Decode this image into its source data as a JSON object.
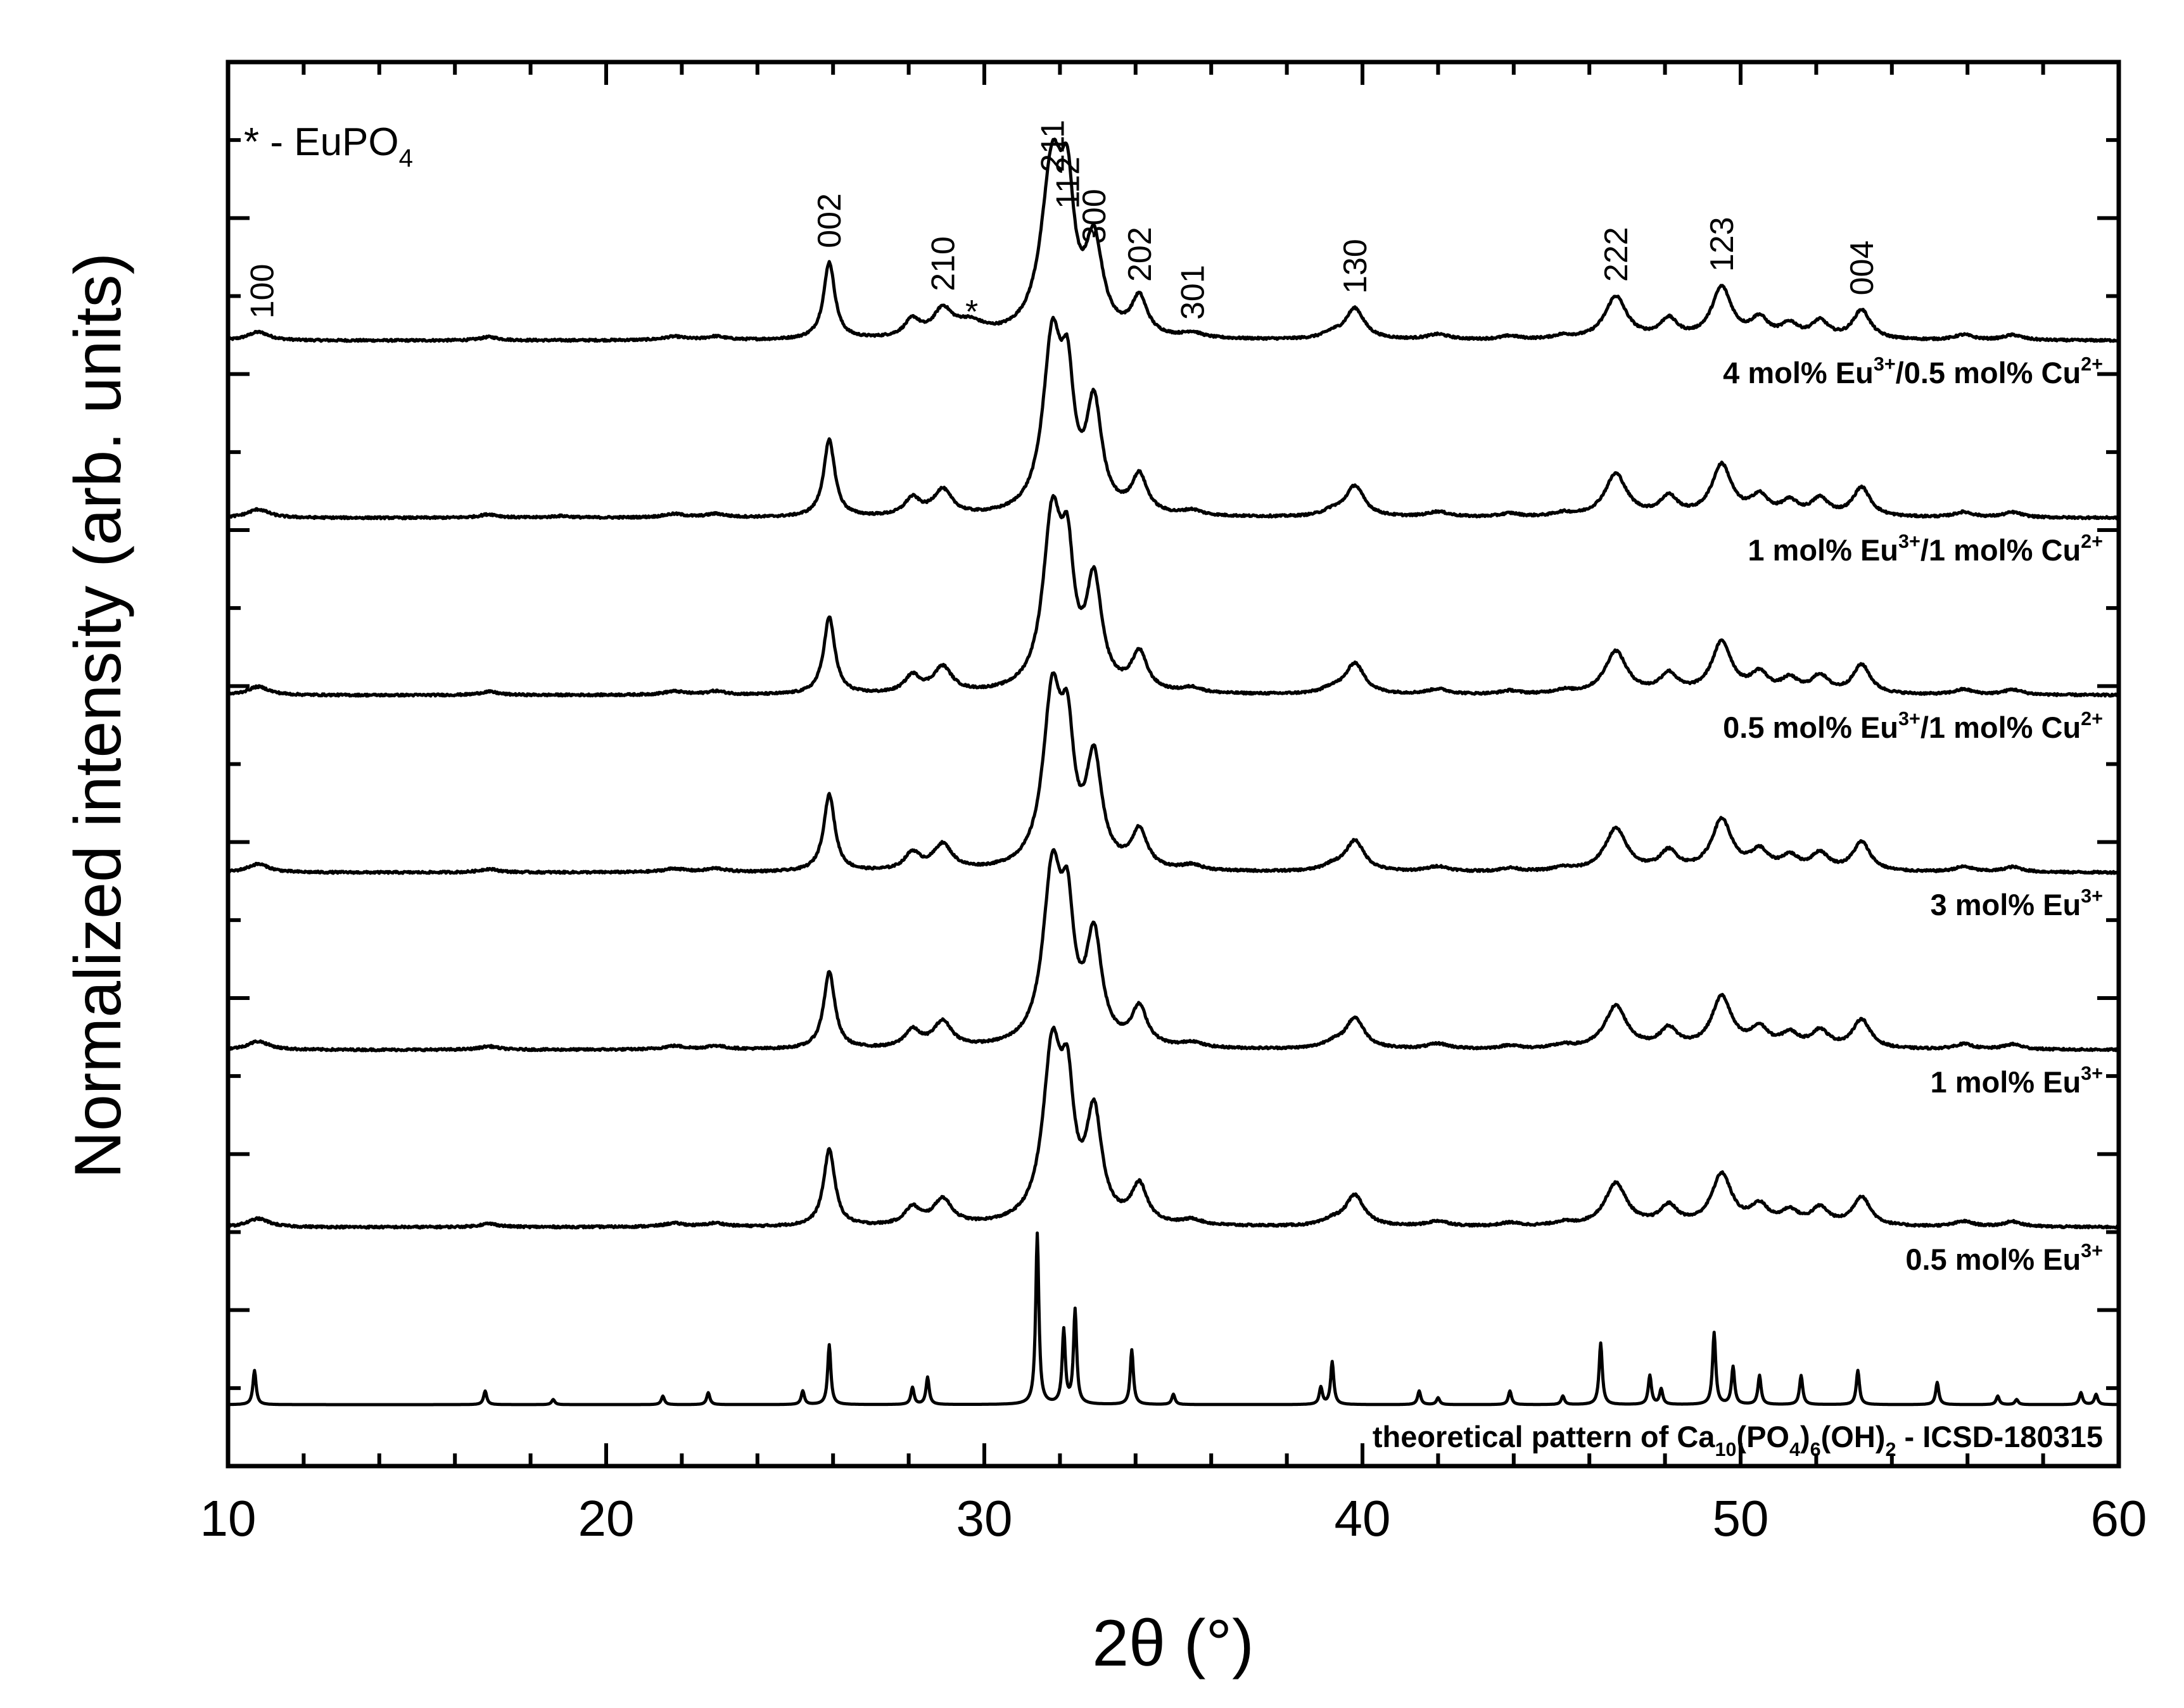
{
  "chart_data": {
    "type": "line",
    "xlabel": "2θ (°)",
    "ylabel": "Normalized intensity (arb. units)",
    "xlim": [
      10,
      60
    ],
    "x_ticks": [
      10,
      20,
      30,
      40,
      50,
      60
    ],
    "y_ticks_labeled": false,
    "grid": false,
    "legend_note": {
      "main": "* - EuPO",
      "sub": "4"
    },
    "impurity_marker": {
      "symbol": "*",
      "x": 29.6
    },
    "peak_labels": [
      {
        "text": "100",
        "x": 10.9
      },
      {
        "text": "002",
        "x": 25.9
      },
      {
        "text": "210",
        "x": 28.9
      },
      {
        "text": "211",
        "x": 31.8
      },
      {
        "text": "112",
        "x": 32.2
      },
      {
        "text": "300",
        "x": 32.9
      },
      {
        "text": "202",
        "x": 34.1
      },
      {
        "text": "301",
        "x": 35.5
      },
      {
        "text": "130",
        "x": 39.8
      },
      {
        "text": "222",
        "x": 46.7
      },
      {
        "text": "123",
        "x": 49.5
      },
      {
        "text": "004",
        "x": 53.2
      }
    ],
    "series": [
      {
        "name_parts": [
          [
            "4 mol% Eu",
            ""
          ],
          [
            "3+",
            "sup"
          ],
          [
            "/0.5 mol% Cu",
            ""
          ],
          [
            "2+",
            "sup"
          ]
        ],
        "offset": 6.0,
        "peaks": [
          [
            10.8,
            0.05,
            0.35
          ],
          [
            16.9,
            0.02,
            0.3
          ],
          [
            21.8,
            0.02,
            0.35
          ],
          [
            22.9,
            0.02,
            0.3
          ],
          [
            25.9,
            0.45,
            0.18
          ],
          [
            28.1,
            0.1,
            0.25
          ],
          [
            28.9,
            0.15,
            0.3
          ],
          [
            29.6,
            0.08,
            0.5
          ],
          [
            31.8,
            1.0,
            0.35
          ],
          [
            32.2,
            0.62,
            0.2
          ],
          [
            32.9,
            0.52,
            0.28
          ],
          [
            34.1,
            0.22,
            0.25
          ],
          [
            35.5,
            0.03,
            0.3
          ],
          [
            39.2,
            0.03,
            0.3
          ],
          [
            39.8,
            0.18,
            0.3
          ],
          [
            42.0,
            0.03,
            0.35
          ],
          [
            43.9,
            0.02,
            0.3
          ],
          [
            45.3,
            0.02,
            0.3
          ],
          [
            46.7,
            0.25,
            0.35
          ],
          [
            48.1,
            0.11,
            0.28
          ],
          [
            49.5,
            0.3,
            0.32
          ],
          [
            50.5,
            0.11,
            0.28
          ],
          [
            51.3,
            0.08,
            0.28
          ],
          [
            52.1,
            0.1,
            0.28
          ],
          [
            53.2,
            0.17,
            0.28
          ],
          [
            55.9,
            0.03,
            0.3
          ],
          [
            57.2,
            0.03,
            0.3
          ]
        ]
      },
      {
        "name_parts": [
          [
            "1 mol% Eu",
            ""
          ],
          [
            "3+",
            "sup"
          ],
          [
            "/1 mol% Cu",
            ""
          ],
          [
            "2+",
            "sup"
          ]
        ],
        "offset": 5.0,
        "peaks": [
          [
            10.8,
            0.05,
            0.35
          ],
          [
            16.9,
            0.02,
            0.3
          ],
          [
            18.8,
            0.01,
            0.3
          ],
          [
            21.8,
            0.02,
            0.35
          ],
          [
            22.9,
            0.02,
            0.3
          ],
          [
            25.9,
            0.45,
            0.18
          ],
          [
            28.1,
            0.1,
            0.25
          ],
          [
            28.9,
            0.15,
            0.3
          ],
          [
            31.8,
            1.0,
            0.3
          ],
          [
            32.2,
            0.62,
            0.2
          ],
          [
            32.9,
            0.62,
            0.25
          ],
          [
            34.1,
            0.22,
            0.25
          ],
          [
            35.5,
            0.03,
            0.3
          ],
          [
            39.2,
            0.03,
            0.3
          ],
          [
            39.8,
            0.18,
            0.3
          ],
          [
            42.0,
            0.03,
            0.35
          ],
          [
            43.9,
            0.02,
            0.3
          ],
          [
            45.3,
            0.02,
            0.3
          ],
          [
            46.7,
            0.25,
            0.35
          ],
          [
            48.1,
            0.11,
            0.28
          ],
          [
            49.5,
            0.3,
            0.32
          ],
          [
            50.5,
            0.11,
            0.28
          ],
          [
            51.3,
            0.08,
            0.28
          ],
          [
            52.1,
            0.1,
            0.28
          ],
          [
            53.2,
            0.17,
            0.28
          ],
          [
            55.9,
            0.03,
            0.3
          ],
          [
            57.2,
            0.03,
            0.3
          ]
        ]
      },
      {
        "name_parts": [
          [
            "0.5 mol% Eu",
            ""
          ],
          [
            "3+",
            "sup"
          ],
          [
            "/1 mol% Cu",
            ""
          ],
          [
            "2+",
            "sup"
          ]
        ],
        "offset": 4.0,
        "peaks": [
          [
            10.8,
            0.05,
            0.35
          ],
          [
            16.9,
            0.02,
            0.3
          ],
          [
            21.8,
            0.02,
            0.35
          ],
          [
            22.9,
            0.02,
            0.3
          ],
          [
            25.9,
            0.45,
            0.18
          ],
          [
            28.1,
            0.1,
            0.25
          ],
          [
            28.9,
            0.15,
            0.3
          ],
          [
            31.8,
            1.0,
            0.3
          ],
          [
            32.2,
            0.62,
            0.2
          ],
          [
            32.9,
            0.62,
            0.25
          ],
          [
            34.1,
            0.22,
            0.25
          ],
          [
            35.5,
            0.03,
            0.3
          ],
          [
            39.2,
            0.03,
            0.3
          ],
          [
            39.8,
            0.18,
            0.3
          ],
          [
            42.0,
            0.03,
            0.35
          ],
          [
            43.9,
            0.02,
            0.3
          ],
          [
            45.3,
            0.02,
            0.3
          ],
          [
            46.7,
            0.25,
            0.35
          ],
          [
            48.1,
            0.11,
            0.28
          ],
          [
            49.5,
            0.3,
            0.32
          ],
          [
            50.5,
            0.11,
            0.28
          ],
          [
            51.3,
            0.08,
            0.28
          ],
          [
            52.1,
            0.1,
            0.28
          ],
          [
            53.2,
            0.17,
            0.28
          ],
          [
            55.9,
            0.03,
            0.3
          ],
          [
            57.2,
            0.03,
            0.3
          ]
        ]
      },
      {
        "name_parts": [
          [
            "3 mol% Eu",
            ""
          ],
          [
            "3+",
            "sup"
          ]
        ],
        "offset": 3.0,
        "peaks": [
          [
            10.8,
            0.05,
            0.35
          ],
          [
            16.9,
            0.02,
            0.3
          ],
          [
            21.8,
            0.02,
            0.35
          ],
          [
            22.9,
            0.02,
            0.3
          ],
          [
            25.9,
            0.45,
            0.18
          ],
          [
            28.1,
            0.1,
            0.25
          ],
          [
            28.9,
            0.15,
            0.3
          ],
          [
            31.8,
            1.0,
            0.3
          ],
          [
            32.2,
            0.62,
            0.2
          ],
          [
            32.9,
            0.62,
            0.25
          ],
          [
            34.1,
            0.22,
            0.25
          ],
          [
            35.5,
            0.03,
            0.3
          ],
          [
            39.2,
            0.03,
            0.3
          ],
          [
            39.8,
            0.18,
            0.3
          ],
          [
            42.0,
            0.03,
            0.35
          ],
          [
            43.9,
            0.02,
            0.3
          ],
          [
            45.3,
            0.02,
            0.3
          ],
          [
            46.7,
            0.25,
            0.35
          ],
          [
            48.1,
            0.11,
            0.28
          ],
          [
            49.5,
            0.3,
            0.32
          ],
          [
            50.5,
            0.11,
            0.28
          ],
          [
            51.3,
            0.08,
            0.28
          ],
          [
            52.1,
            0.1,
            0.28
          ],
          [
            53.2,
            0.17,
            0.28
          ],
          [
            55.9,
            0.03,
            0.3
          ],
          [
            57.2,
            0.03,
            0.3
          ]
        ]
      },
      {
        "name_parts": [
          [
            "1 mol% Eu",
            ""
          ],
          [
            "3+",
            "sup"
          ]
        ],
        "offset": 2.0,
        "peaks": [
          [
            10.8,
            0.05,
            0.35
          ],
          [
            16.9,
            0.02,
            0.3
          ],
          [
            21.8,
            0.02,
            0.35
          ],
          [
            22.9,
            0.02,
            0.3
          ],
          [
            25.9,
            0.45,
            0.18
          ],
          [
            28.1,
            0.1,
            0.25
          ],
          [
            28.9,
            0.15,
            0.3
          ],
          [
            31.8,
            1.0,
            0.3
          ],
          [
            32.2,
            0.62,
            0.2
          ],
          [
            32.9,
            0.62,
            0.25
          ],
          [
            34.1,
            0.22,
            0.25
          ],
          [
            35.5,
            0.03,
            0.3
          ],
          [
            39.2,
            0.03,
            0.3
          ],
          [
            39.8,
            0.18,
            0.3
          ],
          [
            42.0,
            0.03,
            0.35
          ],
          [
            43.9,
            0.02,
            0.3
          ],
          [
            45.3,
            0.02,
            0.3
          ],
          [
            46.7,
            0.25,
            0.35
          ],
          [
            48.1,
            0.11,
            0.28
          ],
          [
            49.5,
            0.3,
            0.32
          ],
          [
            50.5,
            0.11,
            0.28
          ],
          [
            51.3,
            0.08,
            0.28
          ],
          [
            52.1,
            0.1,
            0.28
          ],
          [
            53.2,
            0.17,
            0.28
          ],
          [
            55.9,
            0.03,
            0.3
          ],
          [
            57.2,
            0.03,
            0.3
          ]
        ]
      },
      {
        "name_parts": [
          [
            "0.5 mol% Eu",
            ""
          ],
          [
            "3+",
            "sup"
          ]
        ],
        "offset": 1.0,
        "peaks": [
          [
            10.8,
            0.05,
            0.35
          ],
          [
            16.9,
            0.02,
            0.3
          ],
          [
            21.8,
            0.02,
            0.35
          ],
          [
            22.9,
            0.02,
            0.3
          ],
          [
            25.9,
            0.45,
            0.18
          ],
          [
            28.1,
            0.1,
            0.25
          ],
          [
            28.9,
            0.15,
            0.3
          ],
          [
            31.8,
            1.0,
            0.3
          ],
          [
            32.2,
            0.62,
            0.2
          ],
          [
            32.9,
            0.62,
            0.25
          ],
          [
            34.1,
            0.22,
            0.25
          ],
          [
            35.5,
            0.03,
            0.3
          ],
          [
            39.2,
            0.03,
            0.3
          ],
          [
            39.8,
            0.18,
            0.3
          ],
          [
            42.0,
            0.03,
            0.35
          ],
          [
            43.9,
            0.02,
            0.3
          ],
          [
            45.3,
            0.02,
            0.3
          ],
          [
            46.7,
            0.25,
            0.35
          ],
          [
            48.1,
            0.11,
            0.28
          ],
          [
            49.5,
            0.3,
            0.32
          ],
          [
            50.5,
            0.11,
            0.28
          ],
          [
            51.3,
            0.08,
            0.28
          ],
          [
            52.1,
            0.1,
            0.28
          ],
          [
            53.2,
            0.17,
            0.28
          ],
          [
            55.9,
            0.03,
            0.3
          ],
          [
            57.2,
            0.03,
            0.3
          ]
        ]
      },
      {
        "name_parts": [
          [
            "theoretical pattern of Ca",
            ""
          ],
          [
            "10",
            "sub"
          ],
          [
            "(PO",
            ""
          ],
          [
            "4",
            "sub"
          ],
          [
            ")",
            ""
          ],
          [
            "6",
            "sub"
          ],
          [
            "(OH)",
            ""
          ],
          [
            "2",
            "sub"
          ],
          [
            " - ICSD-180315",
            ""
          ]
        ],
        "offset": 0.0,
        "peaks": [
          [
            10.7,
            0.2,
            0.05
          ],
          [
            16.8,
            0.08,
            0.05
          ],
          [
            18.6,
            0.03,
            0.05
          ],
          [
            21.5,
            0.05,
            0.05
          ],
          [
            22.7,
            0.07,
            0.05
          ],
          [
            25.2,
            0.08,
            0.05
          ],
          [
            25.9,
            0.35,
            0.05
          ],
          [
            28.1,
            0.1,
            0.05
          ],
          [
            28.5,
            0.16,
            0.05
          ],
          [
            31.4,
            1.0,
            0.05
          ],
          [
            32.1,
            0.43,
            0.05
          ],
          [
            32.4,
            0.55,
            0.05
          ],
          [
            33.9,
            0.32,
            0.05
          ],
          [
            35.0,
            0.06,
            0.05
          ],
          [
            38.9,
            0.1,
            0.05
          ],
          [
            39.2,
            0.25,
            0.05
          ],
          [
            41.5,
            0.08,
            0.05
          ],
          [
            42.0,
            0.04,
            0.05
          ],
          [
            43.9,
            0.08,
            0.05
          ],
          [
            45.3,
            0.05,
            0.05
          ],
          [
            46.3,
            0.36,
            0.05
          ],
          [
            47.6,
            0.17,
            0.05
          ],
          [
            47.9,
            0.09,
            0.05
          ],
          [
            49.3,
            0.42,
            0.05
          ],
          [
            49.8,
            0.22,
            0.05
          ],
          [
            50.5,
            0.17,
            0.05
          ],
          [
            51.6,
            0.17,
            0.05
          ],
          [
            53.1,
            0.2,
            0.05
          ],
          [
            55.2,
            0.13,
            0.05
          ],
          [
            56.8,
            0.05,
            0.05
          ],
          [
            57.3,
            0.03,
            0.05
          ],
          [
            59.0,
            0.07,
            0.05
          ],
          [
            59.4,
            0.06,
            0.05
          ]
        ]
      }
    ]
  }
}
